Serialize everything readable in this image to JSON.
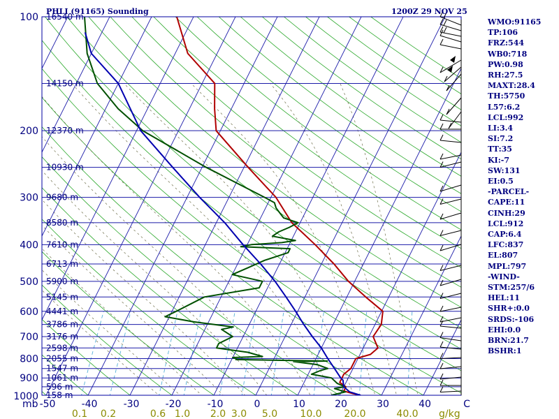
{
  "header": {
    "station": "PHLI (91165) Sounding",
    "time": "1200Z 29 NOV 25"
  },
  "indices": [
    "WMO:91165",
    "TP:106",
    "FRZ:544",
    "WB0:718",
    "PW:0.98",
    "RH:27.5",
    "MAXT:28.4",
    "TH:5750",
    "L57:6.2",
    "LCL:992",
    "LI:3.4",
    "SI:7.2",
    "TT:35",
    "KI:-7",
    "SW:131",
    "EI:0.5",
    "-PARCEL-",
    "CAPE:11",
    "CINH:29",
    "LCL:912",
    "CAP:6.4",
    "LFC:837",
    "EL:807",
    "MPL:797",
    "-WIND-",
    "STM:257/6",
    "HEL:11",
    "SHR+:0.0",
    "SRDS:-106",
    "EHI:0.0",
    "BRN:21.7",
    "BSHR:1"
  ],
  "chart_data": {
    "type": "skew-t",
    "pressure_label_unit": "mb",
    "mixing_ratio_unit": "g/kg",
    "pressure_levels": [
      100,
      200,
      300,
      400,
      500,
      600,
      700,
      800,
      900,
      1000
    ],
    "pressure_ylim": [
      1000,
      100
    ],
    "temperature_ticks": [
      "-50",
      "-40",
      "-30",
      "-20",
      "-10",
      "0",
      "10",
      "20",
      "30",
      "40",
      "C"
    ],
    "mixing_ratio_ticks": [
      "0.1",
      "0.2",
      "0.6",
      "1.0",
      "2.0",
      "3.0",
      "5.0",
      "10.0",
      "20.0",
      "40.0"
    ],
    "mixing_ratio_values": [
      0.1,
      0.2,
      0.6,
      1.0,
      2.0,
      3.0,
      5.0,
      10.0,
      20.0,
      40.0
    ],
    "height_labels": [
      {
        "p": 100,
        "label": "16540 m"
      },
      {
        "p": 150,
        "label": "14150 m"
      },
      {
        "p": 200,
        "label": "12370 m"
      },
      {
        "p": 250,
        "label": "10930 m"
      },
      {
        "p": 300,
        "label": "9680 m"
      },
      {
        "p": 350,
        "label": "8580 m"
      },
      {
        "p": 400,
        "label": "7610 m"
      },
      {
        "p": 450,
        "label": "6713 m"
      },
      {
        "p": 500,
        "label": "5900 m"
      },
      {
        "p": 550,
        "label": "5145 m"
      },
      {
        "p": 600,
        "label": "4441 m"
      },
      {
        "p": 650,
        "label": "3786 m"
      },
      {
        "p": 700,
        "label": "3176 m"
      },
      {
        "p": 750,
        "label": "2598 m"
      },
      {
        "p": 800,
        "label": "2055 m"
      },
      {
        "p": 850,
        "label": "1547 m"
      },
      {
        "p": 900,
        "label": "1061 m"
      },
      {
        "p": 950,
        "label": "596 m"
      },
      {
        "p": 1000,
        "label": "158 m"
      }
    ],
    "series": [
      {
        "key": "temperature",
        "color": "#b00000",
        "points": [
          [
            1000,
            25
          ],
          [
            990,
            23
          ],
          [
            975,
            20.5
          ],
          [
            950,
            20.5
          ],
          [
            925,
            18.5
          ],
          [
            900,
            18.5
          ],
          [
            880,
            18.5
          ],
          [
            850,
            19.5
          ],
          [
            800,
            19.5
          ],
          [
            780,
            22.5
          ],
          [
            750,
            23.5
          ],
          [
            700,
            21
          ],
          [
            650,
            21.5
          ],
          [
            600,
            20.3
          ],
          [
            550,
            14.5
          ],
          [
            500,
            8.5
          ],
          [
            450,
            3
          ],
          [
            400,
            -3.8
          ],
          [
            350,
            -12
          ],
          [
            300,
            -18.8
          ],
          [
            250,
            -29
          ],
          [
            200,
            -41
          ],
          [
            175,
            -44
          ],
          [
            150,
            -47
          ],
          [
            125,
            -57
          ],
          [
            100,
            -64
          ]
        ]
      },
      {
        "key": "dewpoint",
        "color": "#005000",
        "points": [
          [
            1000,
            18
          ],
          [
            980,
            21
          ],
          [
            960,
            18
          ],
          [
            950,
            20.3
          ],
          [
            930,
            18
          ],
          [
            900,
            16
          ],
          [
            880,
            10.8
          ],
          [
            860,
            12.5
          ],
          [
            850,
            14
          ],
          [
            830,
            11
          ],
          [
            815,
            5
          ],
          [
            812,
            13
          ],
          [
            805,
            -9
          ],
          [
            800,
            -9
          ],
          [
            795,
            -10
          ],
          [
            790,
            -3
          ],
          [
            770,
            -7
          ],
          [
            750,
            -15
          ],
          [
            730,
            -15
          ],
          [
            700,
            -12.5
          ],
          [
            670,
            -16
          ],
          [
            660,
            -13.5
          ],
          [
            640,
            -23.5
          ],
          [
            620,
            -31
          ],
          [
            600,
            -29
          ],
          [
            550,
            -24
          ],
          [
            520,
            -12
          ],
          [
            500,
            -12
          ],
          [
            480,
            -20
          ],
          [
            460,
            -17
          ],
          [
            440,
            -14
          ],
          [
            420,
            -9.3
          ],
          [
            410,
            -9.3
          ],
          [
            405,
            -21.3
          ],
          [
            400,
            -19
          ],
          [
            395,
            -12
          ],
          [
            390,
            -9
          ],
          [
            380,
            -15
          ],
          [
            370,
            -14
          ],
          [
            360,
            -12
          ],
          [
            350,
            -10.5
          ],
          [
            340,
            -14.5
          ],
          [
            330,
            -16
          ],
          [
            320,
            -17.5
          ],
          [
            310,
            -18.5
          ],
          [
            300,
            -21.5
          ],
          [
            250,
            -39
          ],
          [
            200,
            -58.5
          ],
          [
            175,
            -67
          ],
          [
            150,
            -75
          ],
          [
            125,
            -81
          ],
          [
            100,
            -86
          ]
        ]
      },
      {
        "key": "parcel",
        "color": "#0000b0",
        "points": [
          [
            1000,
            25
          ],
          [
            980,
            22
          ],
          [
            950,
            20
          ],
          [
            912,
            19
          ],
          [
            900,
            18.2
          ],
          [
            850,
            15.6
          ],
          [
            800,
            12.8
          ],
          [
            750,
            10
          ],
          [
            700,
            6.5
          ],
          [
            650,
            3
          ],
          [
            600,
            -0.5
          ],
          [
            550,
            -4.5
          ],
          [
            500,
            -9
          ],
          [
            450,
            -14.5
          ],
          [
            400,
            -21
          ],
          [
            350,
            -28
          ],
          [
            300,
            -37
          ],
          [
            250,
            -47
          ],
          [
            200,
            -59
          ],
          [
            150,
            -70
          ],
          [
            125,
            -80
          ],
          [
            110,
            -84
          ]
        ]
      }
    ]
  }
}
